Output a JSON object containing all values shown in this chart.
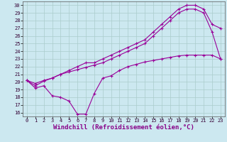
{
  "line1_x": [
    0,
    1,
    2,
    3,
    4,
    5,
    6,
    7,
    8,
    9,
    10,
    11,
    12,
    13,
    14,
    15,
    16,
    17,
    18,
    19,
    20,
    21,
    22,
    23
  ],
  "line1_y": [
    20.2,
    19.5,
    20.1,
    20.5,
    21.0,
    21.5,
    22.0,
    22.5,
    22.5,
    23.0,
    23.5,
    24.0,
    24.5,
    25.0,
    25.5,
    26.5,
    27.5,
    28.5,
    29.5,
    30.0,
    30.0,
    29.5,
    27.5,
    27.0
  ],
  "line2_x": [
    0,
    1,
    2,
    3,
    4,
    5,
    6,
    7,
    8,
    9,
    10,
    11,
    12,
    13,
    14,
    15,
    16,
    17,
    18,
    19,
    20,
    21,
    22,
    23
  ],
  "line2_y": [
    20.2,
    19.8,
    20.2,
    20.5,
    21.0,
    21.3,
    21.6,
    21.9,
    22.2,
    22.5,
    23.0,
    23.5,
    24.0,
    24.5,
    25.0,
    26.0,
    27.0,
    28.0,
    29.0,
    29.5,
    29.5,
    29.0,
    26.5,
    23.0
  ],
  "line3_x": [
    0,
    1,
    2,
    3,
    4,
    5,
    6,
    7,
    8,
    9,
    10,
    11,
    12,
    13,
    14,
    15,
    16,
    17,
    18,
    19,
    20,
    21,
    22,
    23
  ],
  "line3_y": [
    20.2,
    19.2,
    19.5,
    18.2,
    18.0,
    17.5,
    15.8,
    15.8,
    18.5,
    20.5,
    20.8,
    21.5,
    22.0,
    22.3,
    22.6,
    22.8,
    23.0,
    23.2,
    23.4,
    23.5,
    23.5,
    23.5,
    23.5,
    23.0
  ],
  "line_color": "#990099",
  "marker": "+",
  "bg_color": "#cce8f0",
  "grid_color": "#aacccc",
  "xlabel": "Windchill (Refroidissement éolien,°C)",
  "xlim": [
    -0.5,
    23.5
  ],
  "ylim": [
    15.5,
    30.5
  ],
  "xticks": [
    0,
    1,
    2,
    3,
    4,
    5,
    6,
    7,
    8,
    9,
    10,
    11,
    12,
    13,
    14,
    15,
    16,
    17,
    18,
    19,
    20,
    21,
    22,
    23
  ],
  "yticks": [
    16,
    17,
    18,
    19,
    20,
    21,
    22,
    23,
    24,
    25,
    26,
    27,
    28,
    29,
    30
  ],
  "xlabel_color": "#880088",
  "tick_fontsize": 5.0,
  "xlabel_fontsize": 6.5
}
